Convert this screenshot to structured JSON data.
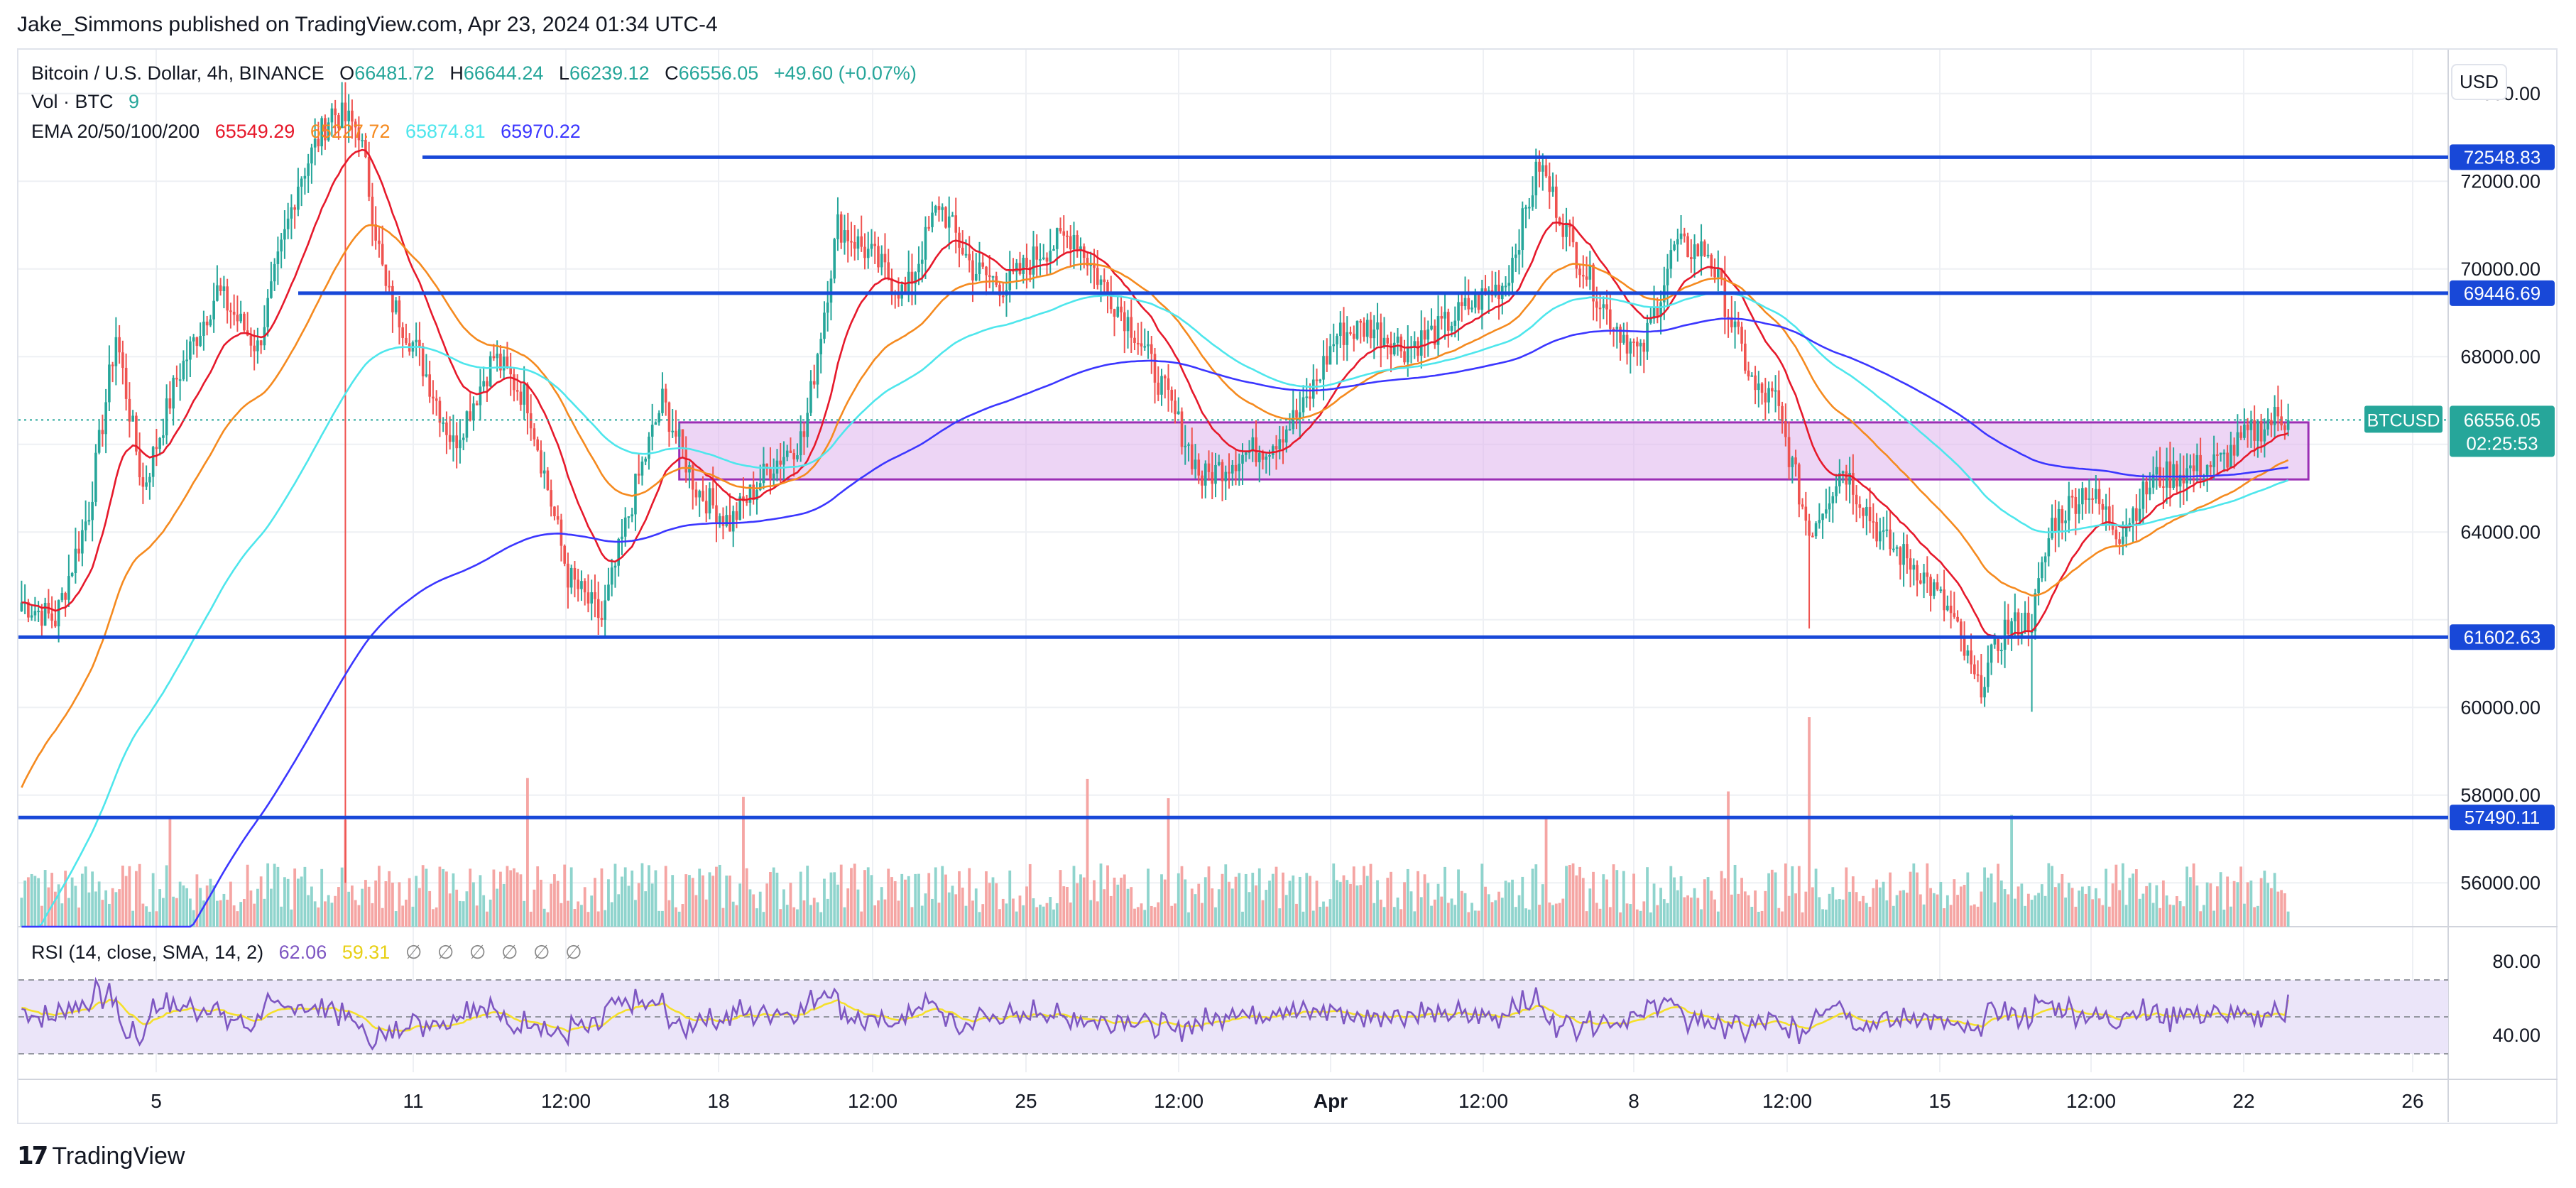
{
  "header": {
    "publisher": "Jake_Simmons published on TradingView.com, Apr 23, 2024 01:34 UTC-4"
  },
  "legend": {
    "symbol": "Bitcoin / U.S. Dollar, 4h, BINANCE",
    "o_label": "O",
    "o": "66481.72",
    "h_label": "H",
    "h": "66644.24",
    "l_label": "L",
    "l": "66239.12",
    "c_label": "C",
    "c": "66556.05",
    "change": "+49.60 (+0.07%)",
    "vol_label": "Vol · BTC",
    "vol_value": "9",
    "ema_label": "EMA 20/50/100/200",
    "ema20": "65549.29",
    "ema50": "65227.72",
    "ema100": "65874.81",
    "ema200": "65970.22"
  },
  "rsi_legend": {
    "label": "RSI (14, close, SMA, 14, 2)",
    "value": "62.06",
    "sma": "59.31",
    "empty": [
      "∅",
      "∅",
      "∅",
      "∅",
      "∅",
      "∅"
    ]
  },
  "currency": "USD",
  "symbol_badge": "BTCUSD",
  "price_badge": "66556.05",
  "countdown": "02:25:53",
  "footer": {
    "brand": "TradingView",
    "logo_icon": "tradingview-logo-icon"
  },
  "colors": {
    "up": "#26a69a",
    "down": "#ef5350",
    "vol_up": "#8fd4cd",
    "vol_down": "#f5a5a3",
    "ema20": "#e6192b",
    "ema50": "#f58a1f",
    "ema100": "#4ee6ec",
    "ema200": "#3b36ff",
    "level": "#1848d8",
    "zone_fill": "#dfb3ec",
    "zone_stroke": "#9b2fb5",
    "rsi": "#7e57c2",
    "rsi_sma": "#f5e02b",
    "rsi_band": "#ebe5f9",
    "price_badge": "#26a69a"
  },
  "chart_data": {
    "type": "candlestick",
    "price_axis_ticks": [
      "74000.00",
      "72000.00",
      "70000.00",
      "68000.00",
      "66000.00",
      "64000.00",
      "62000.00",
      "60000.00",
      "58000.00",
      "56000.00"
    ],
    "price_range": [
      55000,
      75000
    ],
    "time_ticks": [
      "5",
      "11",
      "12:00",
      "18",
      "12:00",
      "25",
      "12:00",
      "Apr",
      "12:00",
      "8",
      "12:00",
      "15",
      "12:00",
      "22",
      "26"
    ],
    "horizontal_levels": [
      {
        "price": 72548.83,
        "label": "72548.83"
      },
      {
        "price": 69446.69,
        "label": "69446.69"
      },
      {
        "price": 61602.63,
        "label": "61602.63"
      },
      {
        "price": 57490.11,
        "label": "57490.11"
      }
    ],
    "zone": {
      "low": 65200,
      "high": 66500
    },
    "last_price": 66556.05,
    "anchors": [
      [
        0,
        62400
      ],
      [
        10,
        62000
      ],
      [
        20,
        64500
      ],
      [
        28,
        68500
      ],
      [
        36,
        65000
      ],
      [
        46,
        67500
      ],
      [
        58,
        69500
      ],
      [
        70,
        68200
      ],
      [
        82,
        72000
      ],
      [
        92,
        73600
      ],
      [
        100,
        73200
      ],
      [
        108,
        69500
      ],
      [
        118,
        68000
      ],
      [
        128,
        66000
      ],
      [
        140,
        68000
      ],
      [
        150,
        67000
      ],
      [
        162,
        63000
      ],
      [
        172,
        62000
      ],
      [
        182,
        65000
      ],
      [
        190,
        67000
      ],
      [
        200,
        65000
      ],
      [
        210,
        64200
      ],
      [
        222,
        65500
      ],
      [
        232,
        66200
      ],
      [
        242,
        71000
      ],
      [
        252,
        70300
      ],
      [
        262,
        69400
      ],
      [
        272,
        71500
      ],
      [
        282,
        70000
      ],
      [
        292,
        69600
      ],
      [
        302,
        70400
      ],
      [
        312,
        70800
      ],
      [
        320,
        69700
      ],
      [
        330,
        68600
      ],
      [
        340,
        67000
      ],
      [
        350,
        65200
      ],
      [
        360,
        65700
      ],
      [
        370,
        66000
      ],
      [
        380,
        66800
      ],
      [
        390,
        68500
      ],
      [
        400,
        68700
      ],
      [
        410,
        68200
      ],
      [
        420,
        68600
      ],
      [
        430,
        69200
      ],
      [
        440,
        69700
      ],
      [
        450,
        72400
      ],
      [
        460,
        70500
      ],
      [
        470,
        69000
      ],
      [
        480,
        68000
      ],
      [
        490,
        70500
      ],
      [
        500,
        70400
      ],
      [
        507,
        68800
      ],
      [
        514,
        67200
      ],
      [
        520,
        67000
      ],
      [
        530,
        64000
      ],
      [
        540,
        65500
      ],
      [
        552,
        63800
      ],
      [
        562,
        63200
      ],
      [
        572,
        62100
      ],
      [
        580,
        60400
      ],
      [
        588,
        61800
      ],
      [
        596,
        62000
      ],
      [
        602,
        64200
      ],
      [
        612,
        65000
      ],
      [
        622,
        64000
      ],
      [
        632,
        65200
      ],
      [
        642,
        65400
      ],
      [
        652,
        65600
      ],
      [
        660,
        66200
      ],
      [
        668,
        66600
      ],
      [
        672,
        66556
      ]
    ],
    "bar_count": 673,
    "ema_series": [
      {
        "name": "EMA 20",
        "value": "65549.29"
      },
      {
        "name": "EMA 50",
        "value": "65227.72"
      },
      {
        "name": "EMA 100",
        "value": "65874.81"
      },
      {
        "name": "EMA 200",
        "value": "65970.22"
      }
    ],
    "ema200_start": 48000,
    "rsi_axis_ticks": [
      "80.00",
      "40.00"
    ],
    "rsi_band": [
      30,
      70
    ],
    "rsi_range": [
      20,
      95
    ],
    "rsi_last": 62.06,
    "rsi_sma_last": 59.31
  }
}
